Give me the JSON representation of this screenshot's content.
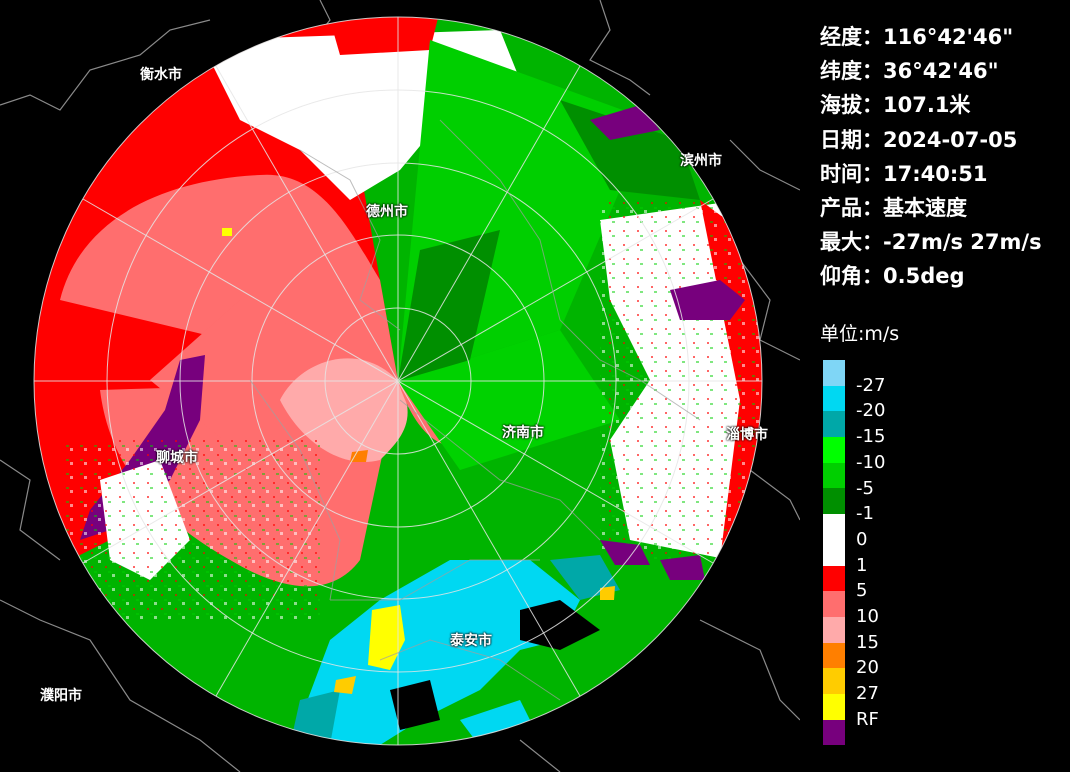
{
  "info": {
    "lon_label": "经度：",
    "lon": "116°42'46\"",
    "lat_label": "纬度：",
    "lat": "36°42'46\"",
    "alt_label": "海拔：",
    "alt": "107.1米",
    "date_label": "日期：",
    "date": "2024-07-05",
    "time_label": "时间：",
    "time": "17:40:51",
    "product_label": "产品：",
    "product": "基本速度",
    "max_label": "最大：",
    "max": "-27m/s 27m/s",
    "elev_label": "仰角：",
    "elev": "0.5deg"
  },
  "legend": {
    "title": "单位:m/s",
    "ticks": [
      "-27",
      "-20",
      "-15",
      "-10",
      "-5",
      "-1",
      "0",
      "1",
      "5",
      "10",
      "15",
      "20",
      "27",
      "RF"
    ],
    "colors": [
      "#7fd6f6",
      "#00d8f2",
      "#00a8a8",
      "#00ff00",
      "#00cf00",
      "#008f00",
      "#ffffff",
      "#ffffff",
      "#ff0000",
      "#ff6e6e",
      "#ffaaaa",
      "#ff7f00",
      "#ffcc00",
      "#ffff00",
      "#77007d"
    ]
  },
  "cities": {
    "hengshui": "衡水市",
    "dezhou": "德州市",
    "binzhou": "滨州市",
    "zibo": "淄博市",
    "liaocheng": "聊城市",
    "jinan": "济南市",
    "taian": "泰安市",
    "puyang": "濮阳市"
  },
  "colors": {
    "background": "#000000",
    "range_rings": "#e6e6e6",
    "boundaries": "#9a9a9a"
  }
}
